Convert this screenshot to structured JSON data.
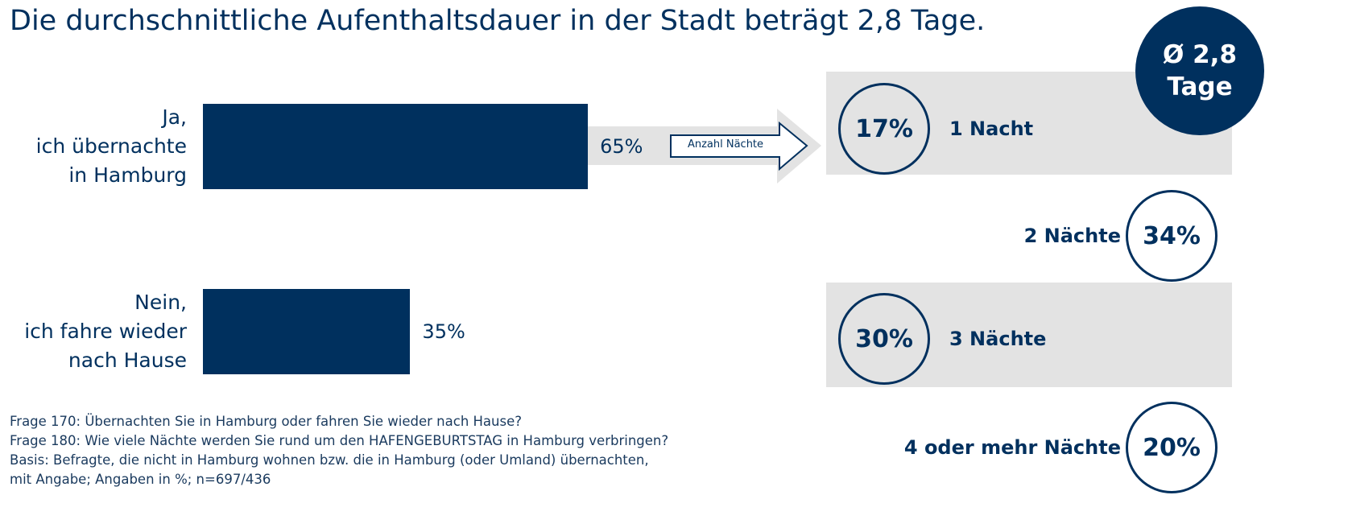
{
  "title": "Die durchschnittliche Aufenthaltsdauer in der Stadt beträgt 2,8 Tage.",
  "badge": "Ø 2,8\nTage",
  "arrow_label": "Anzahl Nächte",
  "footnotes": [
    "Frage 170: Übernachten Sie in Hamburg oder fahren Sie wieder nach Hause?",
    "Frage 180: Wie viele Nächte werden Sie rund um den HAFENGEBURTSTAG in Hamburg verbringen?",
    "Basis: Befragte, die nicht in Hamburg wohnen bzw. die in Hamburg (oder Umland) übernachten,",
    "mit Angabe; Angaben in %; n=697/436"
  ],
  "chart_data": [
    {
      "type": "bar",
      "orientation": "horizontal",
      "color": "#00305e",
      "categories": [
        "Ja,\nich übernachte\nin Hamburg",
        "Nein,\nich fahre wieder\nnach Hause"
      ],
      "values": [
        65,
        35
      ],
      "value_labels": [
        "65%",
        "35%"
      ]
    },
    {
      "type": "circle",
      "color": "#00305e",
      "categories": [
        "1 Nacht",
        "2 Nächte",
        "3 Nächte",
        "4 oder mehr Nächte"
      ],
      "values": [
        17,
        34,
        30,
        20
      ],
      "value_labels": [
        "17%",
        "34%",
        "30%",
        "20%"
      ]
    }
  ]
}
